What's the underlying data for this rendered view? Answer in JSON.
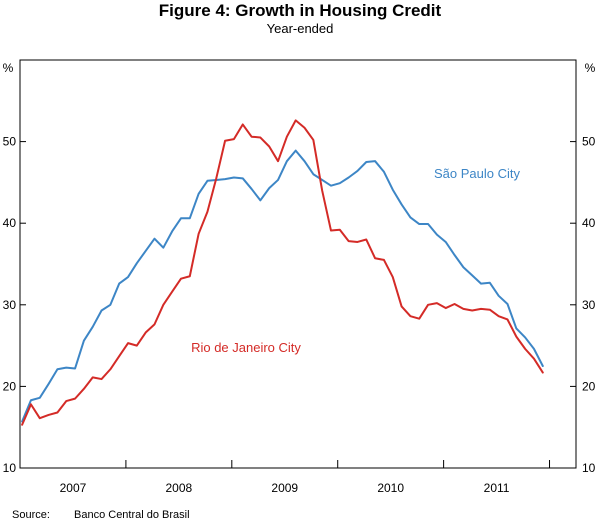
{
  "chart_data": {
    "type": "line",
    "title": "Figure 4: Growth in Housing Credit",
    "subtitle": "Year-ended",
    "ylabel_left": "%",
    "ylabel_right": "%",
    "ylim": [
      10,
      60
    ],
    "yticks": [
      10,
      20,
      30,
      40,
      50
    ],
    "xlim": [
      2006.5,
      2011.75
    ],
    "xtick_labels": [
      "2007",
      "2008",
      "2009",
      "2010",
      "2011"
    ],
    "xtick_label_positions": [
      2007.0,
      2008.0,
      2009.0,
      2010.0,
      2011.0
    ],
    "year_boundaries": [
      2007.5,
      2008.5,
      2009.5,
      2010.5,
      2011.5
    ],
    "x_start": 2006.5,
    "x_step": 0.08333,
    "series": [
      {
        "name": "São Paulo City",
        "color": "#3d86c6",
        "values": [
          15.7,
          18.3,
          18.6,
          20.3,
          22.1,
          22.3,
          22.2,
          25.6,
          27.3,
          29.3,
          30.0,
          32.6,
          33.4,
          35.1,
          36.6,
          38.1,
          37.0,
          39.0,
          40.6,
          40.6,
          43.6,
          45.2,
          45.3,
          45.4,
          45.6,
          45.5,
          44.2,
          42.8,
          44.3,
          45.3,
          47.6,
          48.9,
          47.6,
          46.0,
          45.3,
          44.6,
          44.9,
          45.6,
          46.4,
          47.5,
          47.6,
          46.3,
          44.1,
          42.3,
          40.7,
          39.9,
          39.9,
          38.6,
          37.7,
          36.1,
          34.6,
          33.6,
          32.6,
          32.7,
          31.1,
          30.1,
          27.1,
          26.0,
          24.6,
          22.5
        ]
      },
      {
        "name": "Rio de Janeiro City",
        "color": "#d42b27",
        "values": [
          15.3,
          17.8,
          16.1,
          16.5,
          16.8,
          18.2,
          18.5,
          19.7,
          21.1,
          20.9,
          22.1,
          23.7,
          25.3,
          25.0,
          26.6,
          27.6,
          30.0,
          31.6,
          33.2,
          33.5,
          38.7,
          41.4,
          45.5,
          50.1,
          50.3,
          52.1,
          50.6,
          50.5,
          49.4,
          47.6,
          50.6,
          52.6,
          51.7,
          50.2,
          44.0,
          39.1,
          39.2,
          37.8,
          37.7,
          38.0,
          35.7,
          35.5,
          33.4,
          29.8,
          28.6,
          28.3,
          30.0,
          30.2,
          29.6,
          30.1,
          29.5,
          29.3,
          29.5,
          29.4,
          28.6,
          28.2,
          26.1,
          24.6,
          23.4,
          21.7
        ]
      }
    ],
    "annotations": [
      {
        "text": "São Paulo City",
        "series": 0
      },
      {
        "text": "Rio de Janeiro City",
        "series": 1
      }
    ]
  },
  "source": {
    "label": "Source:",
    "text": "Banco Central do Brasil"
  }
}
